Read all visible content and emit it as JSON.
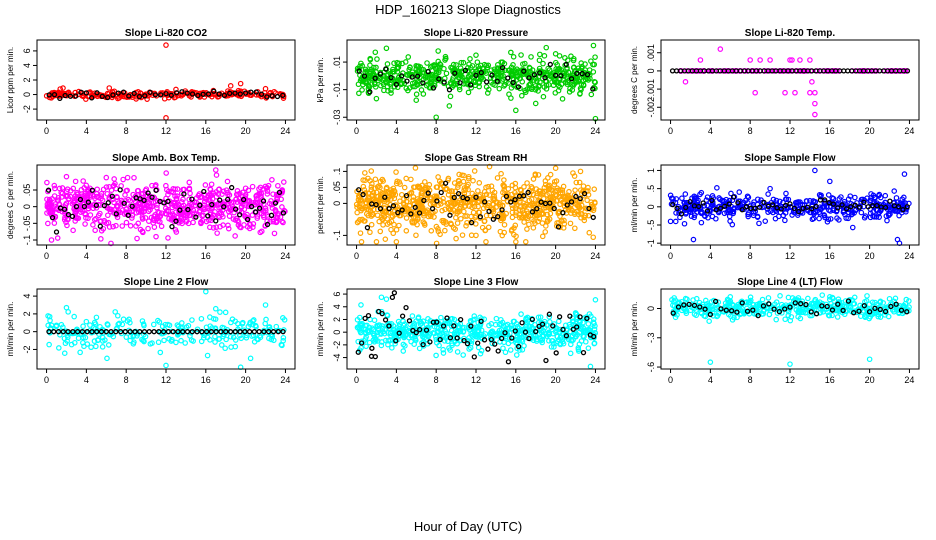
{
  "title": "HDP_160213  Slope Diagnostics",
  "xlabel": "Hour of Day (UTC)",
  "chart_data": [
    {
      "type": "scatter",
      "title": "Slope Li-820 CO2",
      "ylabel": "Licor ppm per min.",
      "color": "#ff0000",
      "xlim": [
        0,
        24
      ],
      "xticks": [
        0,
        4,
        8,
        12,
        16,
        20,
        24
      ],
      "ylim": [
        -3.5,
        7.5
      ],
      "yticks": [
        -2,
        0,
        2,
        4,
        6
      ],
      "spread": 0.25,
      "n": 230,
      "seed": 11,
      "outliers": [
        [
          12,
          6.8
        ],
        [
          12,
          -3.2
        ],
        [
          19.5,
          1.5
        ],
        [
          18.5,
          1.2
        ],
        [
          22,
          0.8
        ],
        [
          6.3,
          0.9
        ],
        [
          9,
          -0.6
        ],
        [
          13,
          0.7
        ]
      ],
      "black_spread": 0.25,
      "black_n": 45,
      "black_range": [
        0,
        24
      ]
    },
    {
      "type": "scatter",
      "title": "Slope Li-820 Pressure",
      "ylabel": "kPa per min.",
      "color": "#00cc00",
      "xlim": [
        0,
        24
      ],
      "xticks": [
        0,
        4,
        8,
        12,
        16,
        20,
        24
      ],
      "ylim": [
        -0.032,
        0.026
      ],
      "yticks": [
        -0.03,
        -0.01,
        0.01
      ],
      "spread": 0.006,
      "n": 600,
      "seed": 23,
      "outliers": [
        [
          8,
          -0.03
        ],
        [
          16,
          -0.025
        ],
        [
          24,
          -0.031
        ],
        [
          23.8,
          0.022
        ],
        [
          8.2,
          0.018
        ],
        [
          15.5,
          0.017
        ],
        [
          3,
          0.02
        ],
        [
          12,
          0.015
        ],
        [
          18,
          -0.02
        ],
        [
          20,
          0.016
        ]
      ],
      "black_spread": 0.005,
      "black_n": 45,
      "black_range": [
        0,
        24
      ]
    },
    {
      "type": "scatter",
      "title": "Slope Li-820 Temp.",
      "ylabel": "degrees C per min.",
      "color": "#ff00ff",
      "xlim": [
        0,
        24
      ],
      "xticks": [
        0,
        4,
        8,
        12,
        16,
        20,
        24
      ],
      "ylim": [
        -0.0027,
        0.0017
      ],
      "yticks": [
        -0.002,
        -0.001,
        0,
        0.001
      ],
      "spread": 0,
      "n": 110,
      "seed": 31,
      "outliers": [
        [
          5,
          0.0012
        ],
        [
          3,
          0.0006
        ],
        [
          8,
          0.0006
        ],
        [
          9,
          0.0006
        ],
        [
          10,
          0.0006
        ],
        [
          12,
          0.0006
        ],
        [
          13,
          0.0006
        ],
        [
          14,
          0.0006
        ],
        [
          11.5,
          -0.0012
        ],
        [
          12.5,
          -0.0012
        ],
        [
          14,
          -0.0012
        ],
        [
          14.5,
          -0.0012
        ],
        [
          14.5,
          -0.0018
        ],
        [
          14.5,
          -0.0024
        ],
        [
          8.5,
          -0.0012
        ],
        [
          1.5,
          -0.0006
        ],
        [
          12.2,
          0.0006
        ],
        [
          14.2,
          -0.0006
        ]
      ],
      "black_spread": 0,
      "black_n": 60,
      "black_range": [
        0,
        24
      ]
    },
    {
      "type": "scatter",
      "title": "Slope Amb. Box Temp.",
      "ylabel": "degrees C per min.",
      "color": "#ff00ff",
      "xlim": [
        0,
        24
      ],
      "xticks": [
        0,
        4,
        8,
        12,
        16,
        20,
        24
      ],
      "ylim": [
        -0.115,
        0.125
      ],
      "yticks": [
        -0.1,
        -0.05,
        0,
        0.05
      ],
      "spread": 0.035,
      "n": 700,
      "seed": 47,
      "outliers": [
        [
          0.5,
          -0.1
        ],
        [
          17,
          0.11
        ],
        [
          2,
          0.09
        ],
        [
          11,
          -0.09
        ]
      ],
      "black_spread": 0.03,
      "black_n": 60,
      "black_range": [
        0,
        24
      ]
    },
    {
      "type": "scatter",
      "title": "Slope Gas Stream RH",
      "ylabel": "percent per min.",
      "color": "#ffa500",
      "xlim": [
        0,
        24
      ],
      "xticks": [
        0,
        4,
        8,
        12,
        16,
        20,
        24
      ],
      "ylim": [
        -0.13,
        0.12
      ],
      "yticks": [
        -0.1,
        0,
        0.05,
        0.1
      ],
      "spread": 0.04,
      "n": 800,
      "seed": 59,
      "outliers": [
        [
          0.5,
          -0.12
        ],
        [
          2,
          -0.12
        ],
        [
          4,
          -0.12
        ],
        [
          10,
          -0.11
        ],
        [
          12,
          -0.1
        ],
        [
          13,
          -0.12
        ],
        [
          16,
          -0.12
        ],
        [
          17,
          -0.12
        ],
        [
          22.5,
          0.1
        ],
        [
          20,
          0.11
        ],
        [
          19.5,
          0.09
        ]
      ],
      "black_spread": 0.03,
      "black_n": 55,
      "black_range": [
        0,
        24
      ]
    },
    {
      "type": "scatter",
      "title": "Slope Sample Flow",
      "ylabel": "ml/min per min.",
      "color": "#0000ff",
      "xlim": [
        0,
        24
      ],
      "xticks": [
        0,
        4,
        8,
        12,
        16,
        20,
        24
      ],
      "ylim": [
        -1.05,
        1.15
      ],
      "yticks": [
        -1,
        -0.5,
        0,
        0.5,
        1
      ],
      "spread": 0.18,
      "n": 420,
      "seed": 71,
      "outliers": [
        [
          14.5,
          1.0
        ],
        [
          23.5,
          0.9
        ],
        [
          2.3,
          -0.9
        ],
        [
          22.8,
          -0.9
        ],
        [
          23,
          -1.0
        ],
        [
          16,
          0.7
        ],
        [
          10,
          0.5
        ],
        [
          0,
          -0.4
        ],
        [
          19.5,
          -0.3
        ]
      ],
      "black_spread": 0.08,
      "black_n": 55,
      "black_range": [
        0,
        24
      ]
    },
    {
      "type": "scatter",
      "title": "Slope Line 2 Flow",
      "ylabel": "ml/min per min.",
      "color": "#00ffff",
      "xlim": [
        0,
        24
      ],
      "xticks": [
        0,
        4,
        8,
        12,
        16,
        20,
        24
      ],
      "ylim": [
        -4.2,
        4.8
      ],
      "yticks": [
        -2,
        0,
        2,
        4
      ],
      "spread": 0.9,
      "n": 260,
      "seed": 83,
      "outliers": [
        [
          16,
          4.5
        ],
        [
          12,
          -3.8
        ],
        [
          19.5,
          -4.0
        ],
        [
          22,
          3.0
        ],
        [
          2,
          2.7
        ],
        [
          20.5,
          -3.0
        ]
      ],
      "black_spread": 0,
      "black_n": 50,
      "black_range": [
        0,
        24
      ]
    },
    {
      "type": "scatter",
      "title": "Slope Line 3 Flow",
      "ylabel": "ml/min per min.",
      "color": "#00ffff",
      "xlim": [
        0,
        24
      ],
      "xticks": [
        0,
        4,
        8,
        12,
        16,
        20,
        24
      ],
      "ylim": [
        -5.8,
        6.8
      ],
      "yticks": [
        -4,
        -2,
        0,
        2,
        4,
        6
      ],
      "spread": 1.4,
      "n": 600,
      "seed": 97,
      "outliers": [
        [
          2.5,
          5.5
        ],
        [
          3,
          5.2
        ],
        [
          24,
          5.1
        ],
        [
          23.5,
          -5.4
        ]
      ],
      "black_spread": 2.0,
      "black_n": 70,
      "black_range": [
        0,
        24
      ],
      "black_extra": [
        [
          3.8,
          6.2
        ],
        [
          1.5,
          -3.8
        ]
      ]
    },
    {
      "type": "scatter",
      "title": "Slope Line 4 (LT) Flow",
      "ylabel": "ml/min per min.",
      "color": "#00ffff",
      "xlim": [
        0,
        24
      ],
      "xticks": [
        0,
        4,
        8,
        12,
        16,
        20,
        24
      ],
      "ylim": [
        -0.62,
        0.2
      ],
      "yticks": [
        -0.6,
        -0.3,
        0
      ],
      "spread": 0.05,
      "n": 420,
      "seed": 109,
      "outliers": [
        [
          4,
          -0.55
        ],
        [
          12,
          -0.57
        ],
        [
          20,
          -0.52
        ],
        [
          6,
          0.12
        ],
        [
          11,
          0.13
        ],
        [
          16,
          0.12
        ],
        [
          22,
          0.1
        ]
      ],
      "black_spread": 0.04,
      "black_n": 45,
      "black_range": [
        0,
        24
      ]
    }
  ]
}
